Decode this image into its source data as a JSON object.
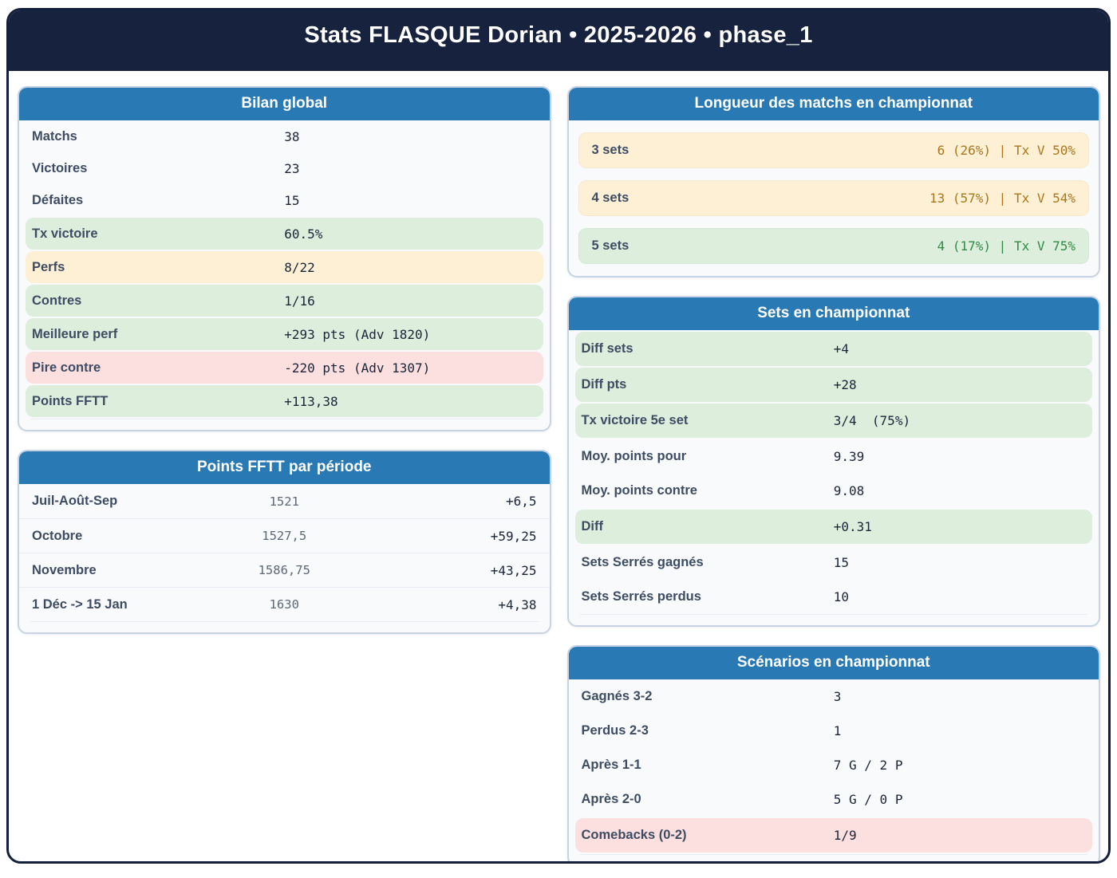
{
  "header": {
    "title": "Stats FLASQUE Dorian • 2025-2026 • phase_1"
  },
  "cards": {
    "bilan": {
      "title": "Bilan global",
      "rows": [
        {
          "label": "Matchs",
          "value": "38",
          "tone": "plain"
        },
        {
          "label": "Victoires",
          "value": "23",
          "tone": "plain"
        },
        {
          "label": "Défaites",
          "value": "15",
          "tone": "plain"
        },
        {
          "label": "Tx victoire",
          "value": "60.5%",
          "tone": "green"
        },
        {
          "label": "Perfs",
          "value": "8/22",
          "tone": "yellow"
        },
        {
          "label": "Contres",
          "value": "1/16",
          "tone": "green"
        },
        {
          "label": "Meilleure perf",
          "value": "+293 pts (Adv 1820)",
          "tone": "green"
        },
        {
          "label": "Pire contre",
          "value": "-220 pts (Adv 1307)",
          "tone": "pink"
        },
        {
          "label": "Points FFTT",
          "value": "+113,38",
          "tone": "green"
        }
      ]
    },
    "periode": {
      "title": "Points FFTT par période",
      "rows": [
        {
          "label": "Juil-Août-Sep",
          "value": "1521",
          "delta": "+6,5"
        },
        {
          "label": "Octobre",
          "value": "1527,5",
          "delta": "+59,25"
        },
        {
          "label": "Novembre",
          "value": "1586,75",
          "delta": "+43,25"
        },
        {
          "label": "1 Déc -> 15 Jan",
          "value": "1630",
          "delta": "+4,38"
        }
      ]
    },
    "longueur": {
      "title": "Longueur des matchs en championnat",
      "rows": [
        {
          "label": "3 sets",
          "value": "6 (26%) | Tx V 50%",
          "tone": "yellow"
        },
        {
          "label": "4 sets",
          "value": "13 (57%) | Tx V 54%",
          "tone": "yellow"
        },
        {
          "label": "5 sets",
          "value": "4 (17%) | Tx V 75%",
          "tone": "green"
        }
      ]
    },
    "sets": {
      "title": "Sets en championnat",
      "rows": [
        {
          "label": "Diff sets",
          "value": "+4",
          "tone": "green"
        },
        {
          "label": "Diff pts",
          "value": "+28",
          "tone": "green"
        },
        {
          "label": "Tx victoire 5e set",
          "value": "3/4  (75%)",
          "tone": "green"
        },
        {
          "label": "Moy. points pour",
          "value": "9.39",
          "tone": "plain"
        },
        {
          "label": "Moy. points contre",
          "value": "9.08",
          "tone": "plain"
        },
        {
          "label": "Diff",
          "value": "+0.31",
          "tone": "green"
        },
        {
          "label": "Sets Serrés gagnés",
          "value": "15",
          "tone": "plain"
        },
        {
          "label": "Sets Serrés perdus",
          "value": "10",
          "tone": "plain"
        }
      ]
    },
    "scenarios": {
      "title": "Scénarios en championnat",
      "rows": [
        {
          "label": "Gagnés 3-2",
          "value": "3",
          "tone": "plain"
        },
        {
          "label": "Perdus 2-3",
          "value": "1",
          "tone": "plain"
        },
        {
          "label": "Après 1-1",
          "value": "7 G / 2 P",
          "tone": "plain"
        },
        {
          "label": "Après 2-0",
          "value": "5 G / 0 P",
          "tone": "plain"
        },
        {
          "label": "Comebacks (0-2)",
          "value": "1/9",
          "tone": "pink"
        }
      ]
    }
  },
  "colors": {
    "navy": "#17223f",
    "card_header_blue": "#2979b5",
    "card_background": "#f8fafc",
    "card_border": "#c7d3e4",
    "label_text": "#3e4c63",
    "value_text": "#1c2438",
    "muted_value_text": "#5d6878",
    "green_highlight": "#ddeedd",
    "yellow_highlight": "#fdf0d5",
    "pink_highlight": "#fcdfdf",
    "amber_value_text": "#a9761b",
    "green_value_text": "#2e8b44"
  }
}
